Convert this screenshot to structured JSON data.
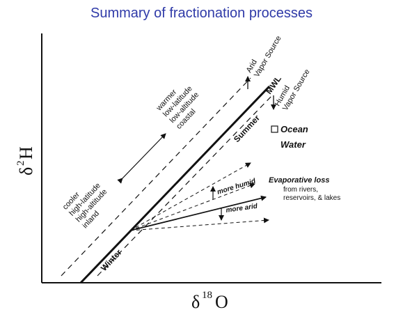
{
  "title": "Summary of fractionation processes",
  "axes": {
    "y_symbol": "δ",
    "y_sup": "2",
    "y_letter": "H",
    "x_symbol": "δ",
    "x_sup": "18",
    "x_letter": "O"
  },
  "labels": {
    "cooler": [
      "cooler",
      "high-latitude",
      "high-altitude",
      "inland"
    ],
    "warmer": [
      "warmer",
      "low-latitude",
      "low-altitude",
      "coastal"
    ],
    "arid_source": [
      "Arid",
      "Vapor Source"
    ],
    "humid_source": [
      "Humid",
      "Vapor Source"
    ],
    "mwl": "MWL",
    "summer": "Summer",
    "winter": "Winter",
    "ocean": [
      "Ocean",
      "Water"
    ],
    "evap_title": "Evaporative loss",
    "evap_sub": [
      "from rivers,",
      "reservoirs, & lakes"
    ],
    "more_humid": "more humid",
    "more_arid": "more arid"
  }
}
